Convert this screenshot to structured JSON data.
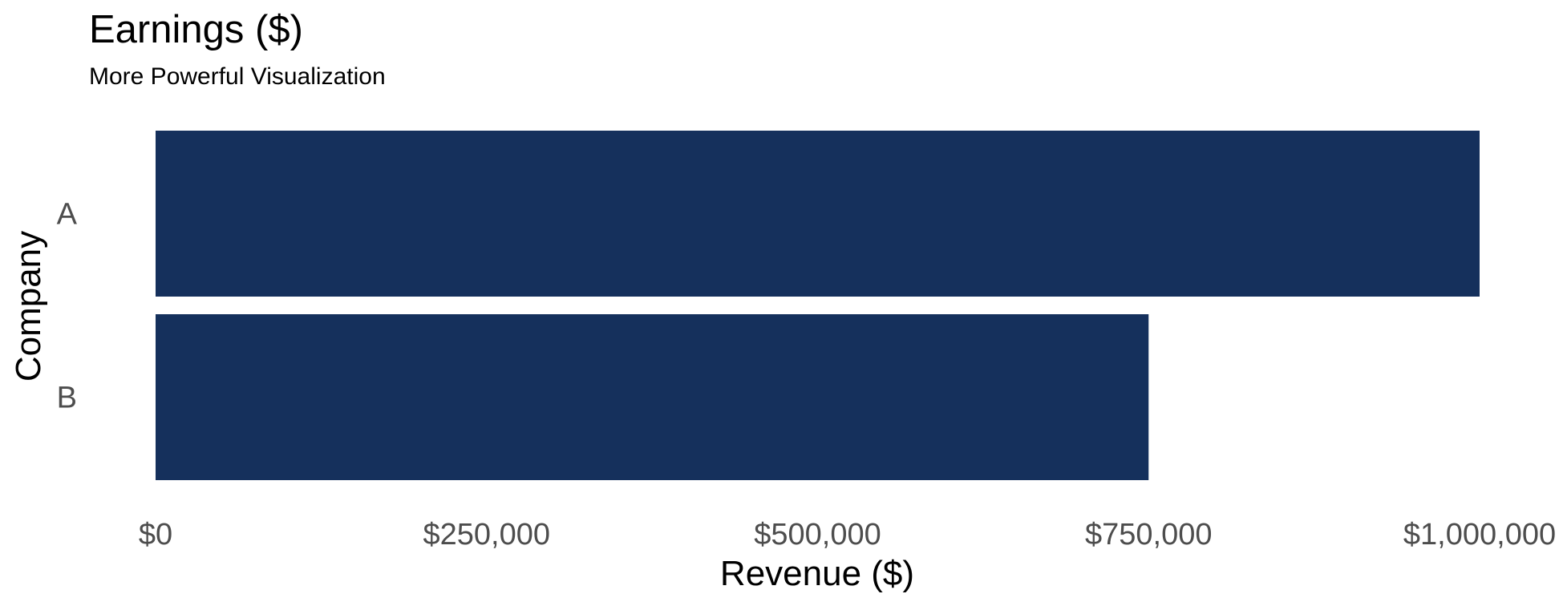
{
  "chart_data": {
    "type": "bar",
    "orientation": "horizontal",
    "title": "Earnings ($)",
    "subtitle": "More Powerful Visualization",
    "xlabel": "Revenue ($)",
    "ylabel": "Company",
    "categories": [
      "A",
      "B"
    ],
    "values": [
      1000000,
      750000
    ],
    "xlim": [
      0,
      1000000
    ],
    "x_ticks": [
      {
        "value": 0,
        "label": "$0"
      },
      {
        "value": 250000,
        "label": "$250,000"
      },
      {
        "value": 500000,
        "label": "$500,000"
      },
      {
        "value": 750000,
        "label": "$750,000"
      },
      {
        "value": 1000000,
        "label": "$1,000,000"
      }
    ],
    "bar_color": "#15305c",
    "grid": false,
    "legend": "none"
  }
}
